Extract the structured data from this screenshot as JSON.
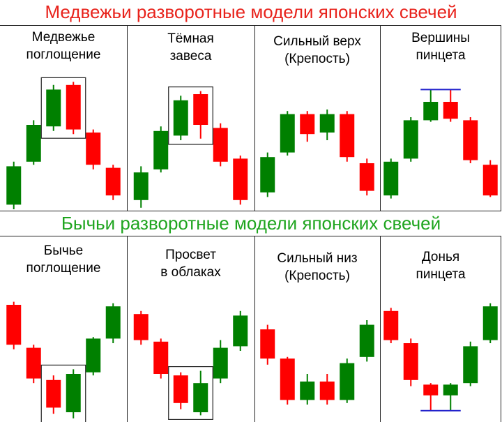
{
  "colors": {
    "bearish": "#ff0000",
    "bullish": "#008000",
    "level_line": "#2222cc",
    "frame": "#222222"
  },
  "sections": {
    "bearish": {
      "title": "Медвежьи разворотные модели японских свечей",
      "title_color": "#e8231c",
      "patterns": [
        {
          "line1": "Медвежье",
          "line2": "поглощение"
        },
        {
          "line1": "Тёмная",
          "line2": "завеса"
        },
        {
          "line1": "Сильный верх",
          "line2": "(Крепость)"
        },
        {
          "line1": "Вершины",
          "line2": "пинцета"
        }
      ]
    },
    "bullish": {
      "title": "Бычьи разворотные модели японских свечей",
      "title_color": "#1fa51f",
      "patterns": [
        {
          "line1": "Бычье",
          "line2": "поглощение"
        },
        {
          "line1": "Просвет",
          "line2": "в облаках"
        },
        {
          "line1": "Сильный низ",
          "line2": "(Крепость)"
        },
        {
          "line1": "Донья",
          "line2": "пинцета"
        }
      ]
    }
  },
  "chart_data": [
    {
      "type": "candlestick",
      "title": "Медвежье поглощение",
      "candles": [
        {
          "dir": "up",
          "open": 3,
          "close": 28,
          "low": 0,
          "high": 31
        },
        {
          "dir": "up",
          "open": 31,
          "close": 55,
          "low": 29,
          "high": 58
        },
        {
          "dir": "up",
          "open": 54,
          "close": 78,
          "low": 51,
          "high": 81
        },
        {
          "dir": "down",
          "open": 81,
          "close": 52,
          "low": 49,
          "high": 83
        },
        {
          "dir": "down",
          "open": 50,
          "close": 29,
          "low": 26,
          "high": 52
        },
        {
          "dir": "down",
          "open": 27,
          "close": 9,
          "low": 6,
          "high": 29
        }
      ],
      "highlight": [
        2,
        3
      ]
    },
    {
      "type": "candlestick",
      "title": "Тёмная завеса",
      "candles": [
        {
          "dir": "up",
          "open": 6,
          "close": 24,
          "low": 1,
          "high": 28
        },
        {
          "dir": "up",
          "open": 26,
          "close": 51,
          "low": 24,
          "high": 54
        },
        {
          "dir": "up",
          "open": 48,
          "close": 71,
          "low": 45,
          "high": 74
        },
        {
          "dir": "down",
          "open": 75,
          "close": 55,
          "low": 46,
          "high": 77
        },
        {
          "dir": "down",
          "open": 53,
          "close": 31,
          "low": 28,
          "high": 56
        },
        {
          "dir": "down",
          "open": 33,
          "close": 6,
          "low": 3,
          "high": 35
        }
      ],
      "highlight": [
        2,
        3
      ]
    },
    {
      "type": "candlestick",
      "title": "Сильный верх (Крепость)",
      "candles": [
        {
          "dir": "up",
          "open": 11,
          "close": 34,
          "low": 8,
          "high": 37
        },
        {
          "dir": "up",
          "open": 37,
          "close": 62,
          "low": 35,
          "high": 64
        },
        {
          "dir": "down",
          "open": 62,
          "close": 49,
          "low": 44,
          "high": 64
        },
        {
          "dir": "up",
          "open": 50,
          "close": 62,
          "low": 45,
          "high": 65
        },
        {
          "dir": "down",
          "open": 62,
          "close": 34,
          "low": 31,
          "high": 64
        },
        {
          "dir": "down",
          "open": 30,
          "close": 12,
          "low": 9,
          "high": 33
        }
      ]
    },
    {
      "type": "candlestick",
      "title": "Вершины пинцета",
      "candles": [
        {
          "dir": "up",
          "open": 9,
          "close": 31,
          "low": 7,
          "high": 33
        },
        {
          "dir": "up",
          "open": 33,
          "close": 58,
          "low": 31,
          "high": 60
        },
        {
          "dir": "up",
          "open": 58,
          "close": 70,
          "low": 57,
          "high": 78
        },
        {
          "dir": "down",
          "open": 70,
          "close": 59,
          "low": 57,
          "high": 78
        },
        {
          "dir": "down",
          "open": 58,
          "close": 32,
          "low": 30,
          "high": 60
        },
        {
          "dir": "down",
          "open": 29,
          "close": 9,
          "low": 8,
          "high": 32
        }
      ],
      "level_line": {
        "at": 78,
        "from": 2,
        "to": 3
      }
    },
    {
      "type": "candlestick",
      "title": "Бычье поглощение",
      "candles": [
        {
          "dir": "down",
          "open": 75,
          "close": 49,
          "low": 46,
          "high": 77
        },
        {
          "dir": "down",
          "open": 47,
          "close": 27,
          "low": 24,
          "high": 49
        },
        {
          "dir": "down",
          "open": 26,
          "close": 8,
          "low": 4,
          "high": 29
        },
        {
          "dir": "up",
          "open": 5,
          "close": 30,
          "low": 1,
          "high": 33
        },
        {
          "dir": "up",
          "open": 31,
          "close": 53,
          "low": 29,
          "high": 54
        },
        {
          "dir": "up",
          "open": 53,
          "close": 74,
          "low": 50,
          "high": 76
        }
      ],
      "highlight": [
        2,
        3
      ]
    },
    {
      "type": "candlestick",
      "title": "Просвет в облаках",
      "candles": [
        {
          "dir": "down",
          "open": 69,
          "close": 52,
          "low": 49,
          "high": 71
        },
        {
          "dir": "down",
          "open": 51,
          "close": 30,
          "low": 27,
          "high": 53
        },
        {
          "dir": "down",
          "open": 29,
          "close": 11,
          "low": 7,
          "high": 31
        },
        {
          "dir": "up",
          "open": 5,
          "close": 24,
          "low": 3,
          "high": 32
        },
        {
          "dir": "up",
          "open": 27,
          "close": 47,
          "low": 24,
          "high": 52
        },
        {
          "dir": "up",
          "open": 48,
          "close": 68,
          "low": 45,
          "high": 71
        }
      ],
      "highlight": [
        2,
        3
      ]
    },
    {
      "type": "candlestick",
      "title": "Сильный низ (Крепость)",
      "candles": [
        {
          "dir": "down",
          "open": 59,
          "close": 40,
          "low": 36,
          "high": 62
        },
        {
          "dir": "down",
          "open": 40,
          "close": 13,
          "low": 10,
          "high": 41
        },
        {
          "dir": "up",
          "open": 13,
          "close": 25,
          "low": 10,
          "high": 30
        },
        {
          "dir": "down",
          "open": 25,
          "close": 13,
          "low": 10,
          "high": 30
        },
        {
          "dir": "up",
          "open": 13,
          "close": 37,
          "low": 11,
          "high": 40
        },
        {
          "dir": "up",
          "open": 41,
          "close": 62,
          "low": 38,
          "high": 65
        }
      ]
    },
    {
      "type": "candlestick",
      "title": "Донья пинцета",
      "candles": [
        {
          "dir": "down",
          "open": 71,
          "close": 52,
          "low": 50,
          "high": 73
        },
        {
          "dir": "down",
          "open": 50,
          "close": 26,
          "low": 22,
          "high": 53
        },
        {
          "dir": "down",
          "open": 23,
          "close": 16,
          "low": 6,
          "high": 24
        },
        {
          "dir": "up",
          "open": 16,
          "close": 23,
          "low": 6,
          "high": 24
        },
        {
          "dir": "up",
          "open": 24,
          "close": 48,
          "low": 22,
          "high": 51
        },
        {
          "dir": "up",
          "open": 52,
          "close": 74,
          "low": 50,
          "high": 76
        }
      ],
      "level_line": {
        "at": 6,
        "from": 2,
        "to": 3
      }
    }
  ]
}
